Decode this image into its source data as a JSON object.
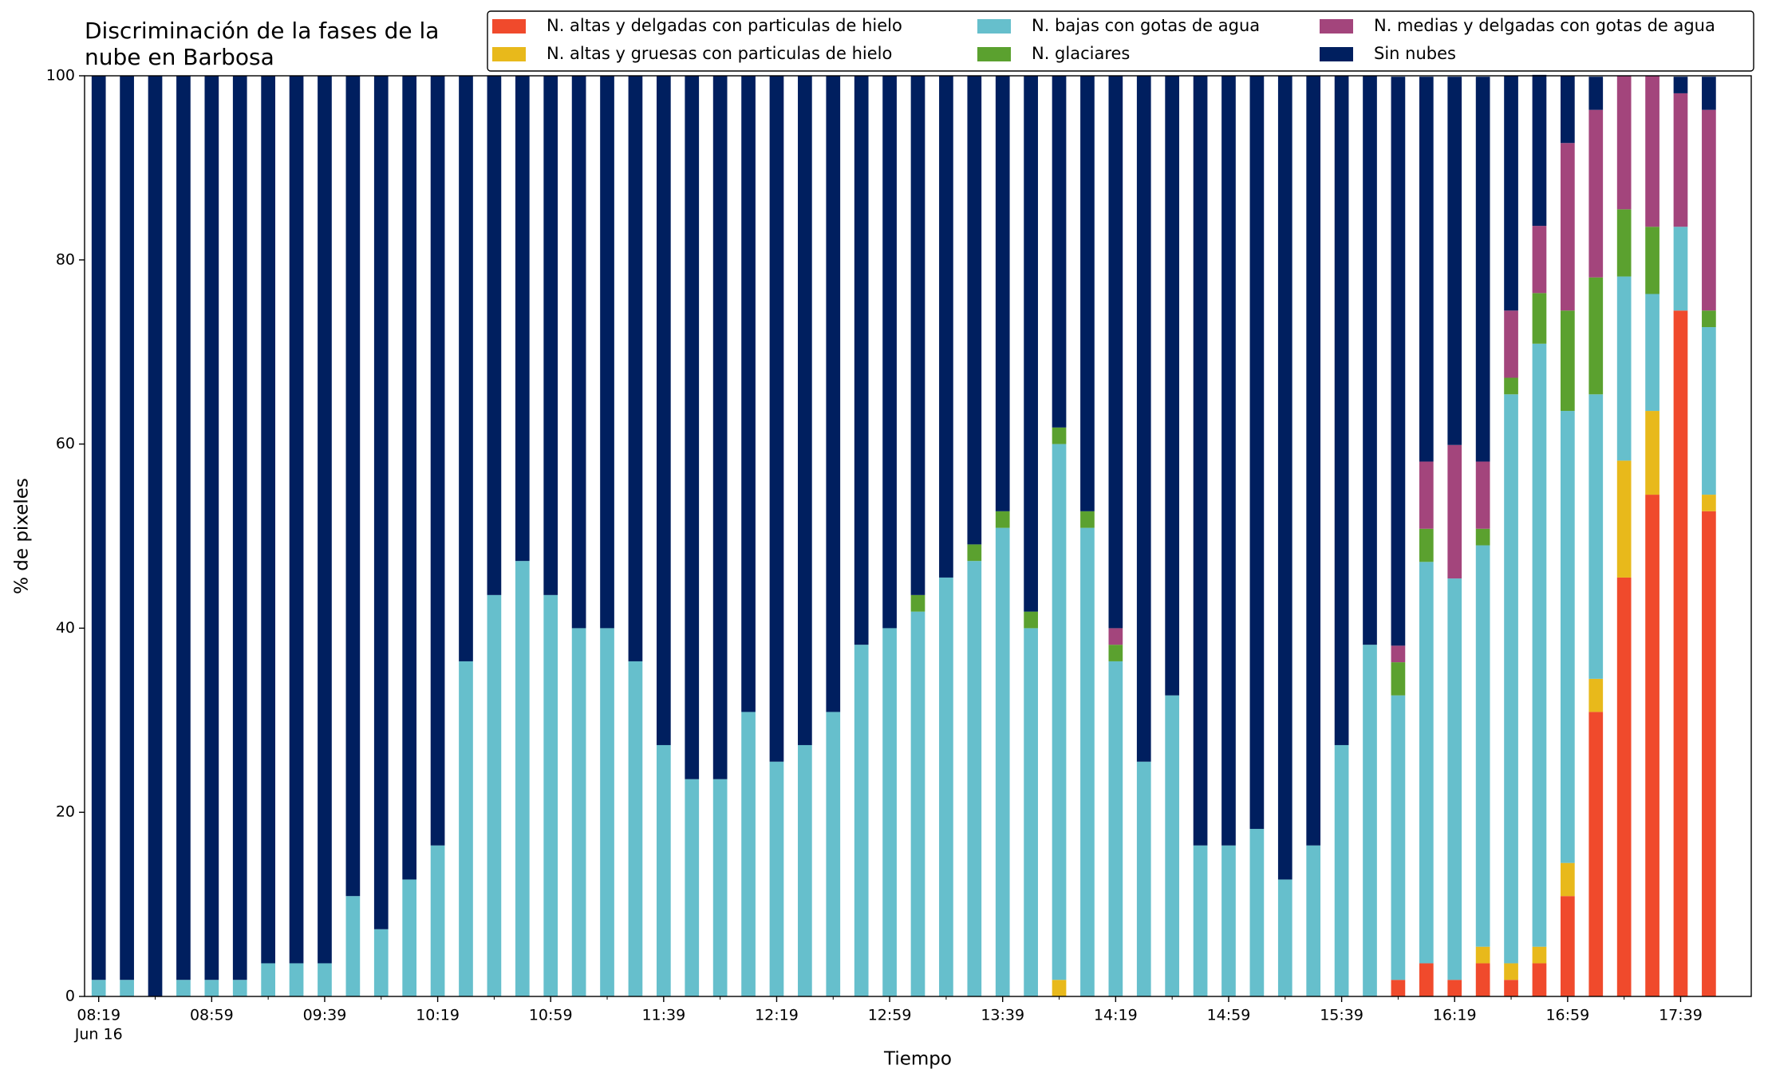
{
  "chart_data": {
    "type": "stacked_bar",
    "title": "Discriminación de la fases de la\nnube en Barbosa",
    "xlabel": "Tiempo",
    "ylabel": "% de pixeles",
    "x_sublabel": "Jun 16",
    "categories": [
      "08:19",
      null,
      null,
      null,
      "08:59",
      null,
      null,
      null,
      "09:39",
      null,
      null,
      null,
      "10:19",
      null,
      null,
      null,
      "10:59",
      null,
      null,
      null,
      "11:39",
      null,
      null,
      null,
      "12:19",
      null,
      null,
      null,
      "12:59",
      null,
      null,
      null,
      "13:39",
      null,
      null,
      null,
      "14:19",
      null,
      null,
      null,
      "14:59",
      null,
      null,
      null,
      "15:39",
      null,
      null,
      null,
      "16:19",
      null,
      null,
      null,
      "16:59",
      null,
      null,
      null,
      "17:39",
      null
    ],
    "ylim": [
      0,
      100
    ],
    "yticks": [
      0,
      20,
      40,
      60,
      80,
      100
    ],
    "legend_position": "top-right",
    "legend_columns": 3,
    "series": [
      {
        "name": "N. altas y delgadas con particulas de hielo",
        "color": "#f04a2c",
        "values": [
          0,
          0,
          0,
          0,
          0,
          0,
          0,
          0,
          0,
          0,
          0,
          0,
          0,
          0,
          0,
          0,
          0,
          0,
          0,
          0,
          0,
          0,
          0,
          0,
          0,
          0,
          0,
          0,
          0,
          0,
          0,
          0,
          0,
          0,
          0,
          0,
          0,
          0,
          0,
          0,
          0,
          0,
          0,
          0,
          0,
          0,
          1.8,
          3.6,
          1.8,
          3.6,
          1.8,
          3.6,
          10.9,
          30.9,
          45.5,
          54.5,
          74.5,
          52.7
        ]
      },
      {
        "name": "N. altas y gruesas con particulas de hielo",
        "color": "#e8b91b",
        "values": [
          0,
          0,
          0,
          0,
          0,
          0,
          0,
          0,
          0,
          0,
          0,
          0,
          0,
          0,
          0,
          0,
          0,
          0,
          0,
          0,
          0,
          0,
          0,
          0,
          0,
          0,
          0,
          0,
          0,
          0,
          0,
          0,
          0,
          0,
          1.8,
          0,
          0,
          0,
          0,
          0,
          0,
          0,
          0,
          0,
          0,
          0,
          0,
          0,
          0,
          1.8,
          1.8,
          1.8,
          3.6,
          3.6,
          12.7,
          9.1,
          0,
          1.8
        ]
      },
      {
        "name": "N. bajas con gotas de agua",
        "color": "#66bfcc",
        "values": [
          1.8,
          1.8,
          0,
          1.8,
          1.8,
          1.8,
          3.6,
          3.6,
          3.6,
          10.9,
          7.3,
          12.7,
          16.4,
          36.4,
          43.6,
          47.3,
          43.6,
          40,
          40,
          36.4,
          27.3,
          23.6,
          23.6,
          30.9,
          25.5,
          27.3,
          30.9,
          38.2,
          40,
          41.8,
          45.5,
          47.3,
          50.9,
          40,
          58.2,
          50.9,
          36.4,
          25.5,
          32.7,
          16.4,
          16.4,
          18.2,
          12.7,
          16.4,
          27.3,
          38.2,
          30.9,
          43.6,
          43.6,
          43.6,
          61.8,
          65.5,
          49.1,
          30.9,
          20,
          12.7,
          9.1,
          18.2
        ]
      },
      {
        "name": "N. glaciares",
        "color": "#5ba12f",
        "values": [
          0,
          0,
          0,
          0,
          0,
          0,
          0,
          0,
          0,
          0,
          0,
          0,
          0,
          0,
          0,
          0,
          0,
          0,
          0,
          0,
          0,
          0,
          0,
          0,
          0,
          0,
          0,
          0,
          0,
          1.8,
          0,
          1.8,
          1.8,
          1.8,
          1.8,
          1.8,
          1.8,
          0,
          0,
          0,
          0,
          0,
          0,
          0,
          0,
          0,
          3.6,
          3.6,
          0,
          1.8,
          1.8,
          5.5,
          10.9,
          12.7,
          7.3,
          7.3,
          0,
          1.8
        ]
      },
      {
        "name": "N. medias y delgadas con gotas de agua",
        "color": "#a3457c",
        "values": [
          0,
          0,
          0,
          0,
          0,
          0,
          0,
          0,
          0,
          0,
          0,
          0,
          0,
          0,
          0,
          0,
          0,
          0,
          0,
          0,
          0,
          0,
          0,
          0,
          0,
          0,
          0,
          0,
          0,
          0,
          0,
          0,
          0,
          0,
          0,
          0,
          1.8,
          0,
          0,
          0,
          0,
          0,
          0,
          0,
          0,
          0,
          1.8,
          7.3,
          14.5,
          7.3,
          7.3,
          7.3,
          18.2,
          18.2,
          14.5,
          16.4,
          14.5,
          21.8
        ]
      },
      {
        "name": "Sin nubes",
        "color": "#001f5f",
        "values": [
          98.2,
          98.2,
          100,
          98.2,
          98.2,
          98.2,
          96.4,
          96.4,
          96.4,
          89.1,
          92.7,
          87.3,
          83.6,
          63.6,
          56.4,
          52.7,
          56.4,
          60,
          60,
          63.6,
          72.7,
          76.4,
          76.4,
          69.1,
          74.5,
          72.7,
          69.1,
          61.8,
          60,
          56.4,
          54.5,
          50.9,
          47.3,
          58.2,
          38.2,
          47.3,
          60,
          74.5,
          67.3,
          83.6,
          83.6,
          81.8,
          87.3,
          83.6,
          72.7,
          61.8,
          61.8,
          41.8,
          40,
          41.8,
          25.5,
          16.4,
          7.3,
          3.6,
          0,
          0,
          1.8,
          3.6
        ]
      }
    ]
  }
}
